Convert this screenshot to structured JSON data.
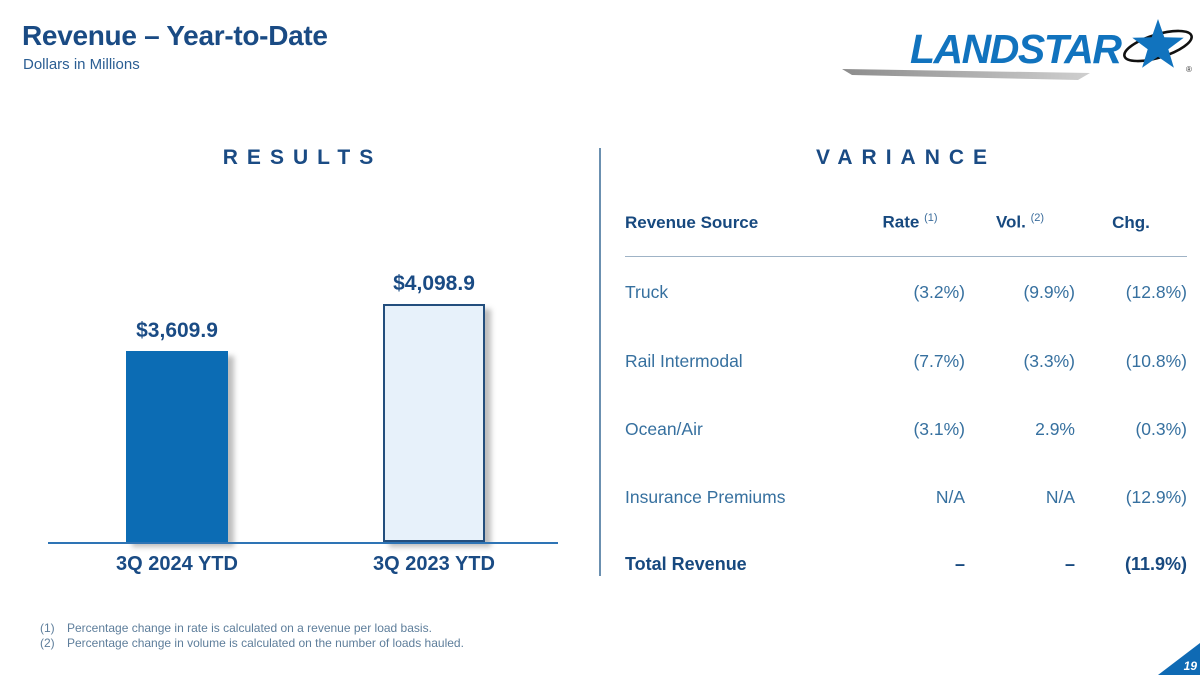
{
  "slide": {
    "title": "Revenue – Year-to-Date",
    "subtitle": "Dollars in Millions",
    "page_number": "19"
  },
  "logo": {
    "brand": "LANDSTAR",
    "registered": "®"
  },
  "results": {
    "heading": "RESULTS"
  },
  "variance": {
    "heading": "VARIANCE",
    "columns": {
      "source": "Revenue Source",
      "rate": "Rate",
      "rate_sup": "(1)",
      "vol": "Vol.",
      "vol_sup": "(2)",
      "chg": "Chg."
    },
    "rows": [
      {
        "source": "Truck",
        "rate": "(3.2%)",
        "vol": "(9.9%)",
        "chg": "(12.8%)"
      },
      {
        "source": "Rail Intermodal",
        "rate": "(7.7%)",
        "vol": "(3.3%)",
        "chg": "(10.8%)"
      },
      {
        "source": "Ocean/Air",
        "rate": "(3.1%)",
        "vol": "2.9%",
        "chg": "(0.3%)"
      },
      {
        "source": "Insurance Premiums",
        "rate": "N/A",
        "vol": "N/A",
        "chg": "(12.9%)"
      }
    ],
    "total": {
      "source": "Total Revenue",
      "rate": "–",
      "vol": "–",
      "chg": "(11.9%)"
    }
  },
  "footnotes": [
    {
      "num": "(1)",
      "text": "Percentage change in rate is calculated on a revenue per load basis."
    },
    {
      "num": "(2)",
      "text": "Percentage change in volume is calculated on the number of loads hauled."
    }
  ],
  "chart_data": {
    "type": "bar",
    "title": "RESULTS",
    "ylabel": "Dollars in Millions",
    "categories": [
      "3Q 2024 YTD",
      "3Q 2023 YTD"
    ],
    "values": [
      3609.9,
      4098.9
    ],
    "value_labels": [
      "$3,609.9",
      "$4,098.9"
    ],
    "ylim": [
      1600,
      4100
    ],
    "grid": false,
    "legend": "none",
    "bar_fills": [
      "#0c6cb4",
      "#e7f1fa"
    ],
    "bar_borders": [
      "none",
      "#234e7d"
    ]
  },
  "colors": {
    "heading_navy": "#1a4b84",
    "table_body_blue": "#36709f",
    "logo_blue": "#1173be",
    "axis_blue": "#2e74b5",
    "corner_blue": "#0f6ab4"
  }
}
